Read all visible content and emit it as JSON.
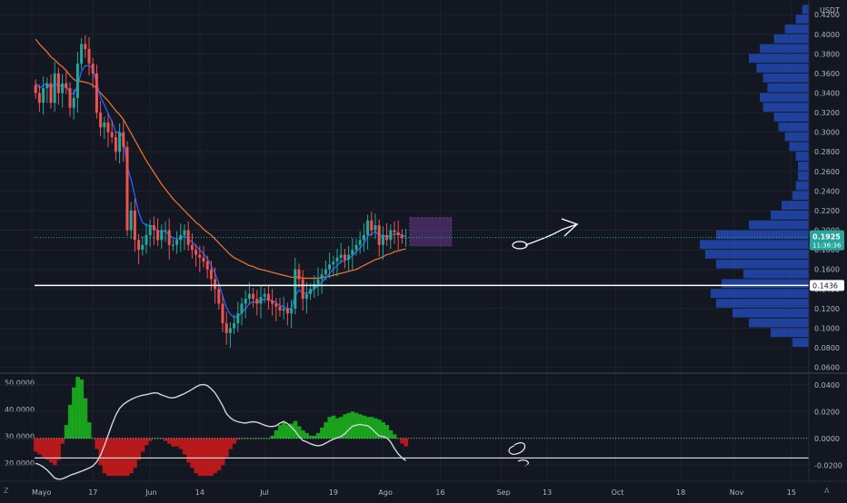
{
  "currency_label": "USDT",
  "corner_left": "Z",
  "corner_right": "A",
  "colors": {
    "background": "#131722",
    "grid": "#1e222d",
    "candle_up": "#26a69a",
    "candle_down": "#ef5350",
    "ema_fast": "#2962ff",
    "ema_slow": "#e8702a",
    "support": "#ffffff",
    "volume_profile": "#2962ff",
    "osc_positive": "#1bb91b",
    "osc_negative": "#d11a1a",
    "osc_line": "#d1d4dc",
    "price_badge": "#26a69a",
    "box_fill": "#7b3fa0"
  },
  "price_badge": {
    "value": "0.1925",
    "timer": "11:36:36"
  },
  "support_badge": {
    "value": "0.1436"
  },
  "chart_data": [
    {
      "type": "candlestick",
      "title": "",
      "xlabel": "",
      "ylabel": "USDT",
      "ylim": [
        0.055,
        0.435
      ],
      "y_ticks": [
        "0.4200",
        "0.4000",
        "0.3800",
        "0.3600",
        "0.3400",
        "0.3200",
        "0.3000",
        "0.2800",
        "0.2600",
        "0.2400",
        "0.2200",
        "0.2000",
        "0.1800",
        "0.1600",
        "0.1400",
        "0.1200",
        "0.1000",
        "0.0800",
        "0.0600"
      ],
      "x_ticks": [
        "Mayo",
        "17",
        "Jun",
        "14",
        "Jul",
        "19",
        "Ago",
        "16",
        "Sep",
        "13",
        "Oct",
        "18",
        "Nov",
        "15"
      ],
      "x_tick_days": [
        0,
        16,
        31,
        44,
        61,
        79,
        92,
        107,
        123,
        135,
        153,
        170,
        184,
        199
      ],
      "first_day": 0,
      "close_series": [
        0.34,
        0.33,
        0.345,
        0.35,
        0.33,
        0.36,
        0.34,
        0.35,
        0.345,
        0.325,
        0.335,
        0.37,
        0.39,
        0.385,
        0.37,
        0.36,
        0.32,
        0.305,
        0.31,
        0.3,
        0.295,
        0.28,
        0.3,
        0.285,
        0.2,
        0.22,
        0.19,
        0.18,
        0.185,
        0.195,
        0.205,
        0.2,
        0.19,
        0.2,
        0.2,
        0.185,
        0.185,
        0.19,
        0.195,
        0.2,
        0.185,
        0.18,
        0.175,
        0.172,
        0.168,
        0.16,
        0.15,
        0.14,
        0.125,
        0.105,
        0.095,
        0.1,
        0.105,
        0.115,
        0.125,
        0.13,
        0.135,
        0.13,
        0.125,
        0.132,
        0.135,
        0.128,
        0.125,
        0.122,
        0.118,
        0.12,
        0.115,
        0.12,
        0.16,
        0.15,
        0.13,
        0.135,
        0.14,
        0.145,
        0.15,
        0.155,
        0.16,
        0.165,
        0.168,
        0.172,
        0.175,
        0.17,
        0.175,
        0.18,
        0.185,
        0.19,
        0.195,
        0.21,
        0.2,
        0.205,
        0.185,
        0.195,
        0.19,
        0.2,
        0.198,
        0.195,
        0.192,
        0.1925
      ],
      "ema_fast": [
        0.35,
        0.345,
        0.348,
        0.35,
        0.345,
        0.35,
        0.347,
        0.348,
        0.347,
        0.34,
        0.339,
        0.348,
        0.362,
        0.368,
        0.368,
        0.365,
        0.35,
        0.336,
        0.328,
        0.319,
        0.311,
        0.3,
        0.3,
        0.295,
        0.265,
        0.252,
        0.235,
        0.218,
        0.208,
        0.205,
        0.205,
        0.203,
        0.199,
        0.199,
        0.199,
        0.195,
        0.192,
        0.191,
        0.192,
        0.194,
        0.191,
        0.188,
        0.184,
        0.18,
        0.176,
        0.171,
        0.164,
        0.156,
        0.146,
        0.133,
        0.121,
        0.114,
        0.111,
        0.112,
        0.116,
        0.12,
        0.125,
        0.127,
        0.126,
        0.128,
        0.13,
        0.129,
        0.128,
        0.126,
        0.123,
        0.122,
        0.12,
        0.12,
        0.133,
        0.139,
        0.136,
        0.136,
        0.137,
        0.14,
        0.143,
        0.147,
        0.151,
        0.156,
        0.16,
        0.164,
        0.168,
        0.169,
        0.171,
        0.174,
        0.178,
        0.182,
        0.186,
        0.194,
        0.196,
        0.199,
        0.194,
        0.195,
        0.193,
        0.195,
        0.196,
        0.196,
        0.195,
        0.194
      ],
      "ema_slow": [
        0.395,
        0.39,
        0.386,
        0.382,
        0.377,
        0.374,
        0.37,
        0.367,
        0.363,
        0.358,
        0.354,
        0.352,
        0.352,
        0.351,
        0.35,
        0.348,
        0.345,
        0.34,
        0.336,
        0.332,
        0.327,
        0.322,
        0.318,
        0.313,
        0.306,
        0.299,
        0.292,
        0.285,
        0.278,
        0.271,
        0.265,
        0.259,
        0.253,
        0.247,
        0.242,
        0.237,
        0.232,
        0.228,
        0.224,
        0.22,
        0.216,
        0.212,
        0.208,
        0.205,
        0.201,
        0.198,
        0.195,
        0.191,
        0.187,
        0.183,
        0.179,
        0.175,
        0.172,
        0.17,
        0.168,
        0.166,
        0.164,
        0.163,
        0.161,
        0.16,
        0.159,
        0.158,
        0.157,
        0.156,
        0.155,
        0.154,
        0.153,
        0.152,
        0.152,
        0.152,
        0.151,
        0.151,
        0.151,
        0.151,
        0.151,
        0.152,
        0.152,
        0.153,
        0.154,
        0.155,
        0.156,
        0.157,
        0.158,
        0.159,
        0.16,
        0.162,
        0.164,
        0.166,
        0.168,
        0.17,
        0.171,
        0.173,
        0.175,
        0.176,
        0.178,
        0.179,
        0.18,
        0.181
      ],
      "support_level": 0.1436,
      "consolidation_box": {
        "x": [
          99,
          110
        ],
        "y": [
          0.184,
          0.213
        ]
      },
      "volume_profile": {
        "price": [
          0.085,
          0.095,
          0.105,
          0.115,
          0.125,
          0.135,
          0.145,
          0.155,
          0.165,
          0.175,
          0.185,
          0.195,
          0.205,
          0.215,
          0.225,
          0.235,
          0.245,
          0.255,
          0.265,
          0.275,
          0.285,
          0.295,
          0.305,
          0.315,
          0.325,
          0.335,
          0.345,
          0.355,
          0.365,
          0.375,
          0.385,
          0.395,
          0.405,
          0.415,
          0.425
        ],
        "volume": [
          0.15,
          0.35,
          0.55,
          0.7,
          0.85,
          0.9,
          0.8,
          0.6,
          0.85,
          0.95,
          1.0,
          0.85,
          0.55,
          0.35,
          0.25,
          0.15,
          0.12,
          0.1,
          0.1,
          0.12,
          0.18,
          0.22,
          0.28,
          0.32,
          0.42,
          0.45,
          0.38,
          0.42,
          0.48,
          0.55,
          0.45,
          0.32,
          0.22,
          0.12,
          0.06
        ]
      }
    },
    {
      "type": "area",
      "title": "",
      "left_ticks": [
        "50.0000",
        "40.0000",
        "30.0000",
        "20.0000"
      ],
      "right_ticks": [
        "0.0400",
        "0.0200",
        "0.0000",
        "-0.0200"
      ],
      "ylim": [
        -0.032,
        0.048
      ],
      "left_ylim": [
        13.3,
        53.3
      ],
      "first_day": 0,
      "histogram": [
        -0.01,
        -0.012,
        -0.014,
        -0.016,
        -0.018,
        -0.02,
        -0.016,
        -0.004,
        0.01,
        0.025,
        0.038,
        0.046,
        0.044,
        0.03,
        0.012,
        0.0,
        -0.008,
        -0.02,
        -0.026,
        -0.028,
        -0.028,
        -0.028,
        -0.028,
        -0.028,
        -0.028,
        -0.026,
        -0.022,
        -0.016,
        -0.01,
        -0.005,
        -0.002,
        0.0,
        0.0,
        0.0,
        -0.002,
        -0.004,
        -0.006,
        -0.006,
        -0.008,
        -0.012,
        -0.018,
        -0.022,
        -0.026,
        -0.028,
        -0.028,
        -0.028,
        -0.028,
        -0.026,
        -0.024,
        -0.02,
        -0.014,
        -0.008,
        -0.004,
        -0.001,
        0.0,
        0.0,
        0.0,
        0.0,
        0.0,
        0.0,
        0.0,
        0.0,
        0.002,
        0.006,
        0.01,
        0.012,
        0.01,
        0.011,
        0.013,
        0.009,
        0.006,
        0.004,
        0.002,
        0.002,
        0.004,
        0.008,
        0.012,
        0.016,
        0.017,
        0.015,
        0.016,
        0.018,
        0.019,
        0.02,
        0.019,
        0.018,
        0.017,
        0.016,
        0.016,
        0.015,
        0.014,
        0.012,
        0.01,
        0.006,
        0.003,
        0.0,
        -0.004,
        -0.006
      ],
      "oscillator_line": [
        20.0,
        19.5,
        18.6,
        17.5,
        16.0,
        14.5,
        14.0,
        14.2,
        14.8,
        15.5,
        16.0,
        16.5,
        17.0,
        17.6,
        18.2,
        19.0,
        20.5,
        23.0,
        26.5,
        30.5,
        34.5,
        38.0,
        40.5,
        42.0,
        43.0,
        43.8,
        44.5,
        45.0,
        45.4,
        45.6,
        46.0,
        46.3,
        46.2,
        45.5,
        45.0,
        44.5,
        44.4,
        44.8,
        45.4,
        46.0,
        46.8,
        47.6,
        48.5,
        49.2,
        49.4,
        49.0,
        47.8,
        46.3,
        44.0,
        41.5,
        38.5,
        37.0,
        36.0,
        35.5,
        35.2,
        35.0,
        35.3,
        35.5,
        35.3,
        34.8,
        34.2,
        33.8,
        33.7,
        34.0,
        35.0,
        35.6,
        34.8,
        33.5,
        32.0,
        30.0,
        28.5,
        28.0,
        27.3,
        26.8,
        26.5,
        26.8,
        27.5,
        28.3,
        29.0,
        29.5,
        30.0,
        31.0,
        32.5,
        33.8,
        34.2,
        34.5,
        34.2,
        34.0,
        33.0,
        31.5,
        30.2,
        30.0,
        29.5,
        28.0,
        25.5,
        23.5,
        22.0,
        21.0
      ]
    }
  ]
}
